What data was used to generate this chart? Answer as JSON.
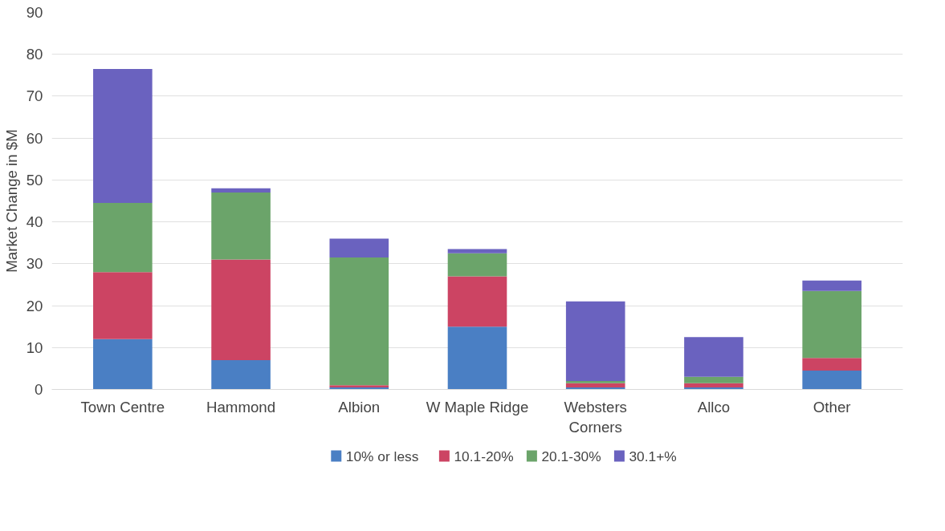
{
  "chart_data": {
    "type": "bar",
    "stacked": true,
    "ylabel": "Market Change in $M",
    "categories": [
      "Town Centre",
      "Hammond",
      "Albion",
      "W Maple Ridge",
      "Websters Corners",
      "Allco",
      "Other"
    ],
    "series": [
      {
        "name": "10% or less",
        "color": "#4a7fc4",
        "values": [
          12,
          7,
          0.5,
          15,
          0.5,
          0.5,
          4.5
        ]
      },
      {
        "name": "10.1-20%",
        "color": "#cc4463",
        "values": [
          16,
          24,
          0.5,
          12,
          1,
          1,
          3
        ]
      },
      {
        "name": "20.1-30%",
        "color": "#6ba46a",
        "values": [
          16.5,
          16,
          30.5,
          5.5,
          0.5,
          1.5,
          16
        ]
      },
      {
        "name": "30.1+%",
        "color": "#6a62bf",
        "values": [
          32,
          1,
          4.5,
          1,
          19,
          9.5,
          2.5
        ]
      }
    ],
    "ylim": [
      0,
      90
    ],
    "yticks": [
      0,
      10,
      20,
      30,
      40,
      50,
      60,
      70,
      80,
      90
    ],
    "grid": "y",
    "legend": "bottom"
  }
}
